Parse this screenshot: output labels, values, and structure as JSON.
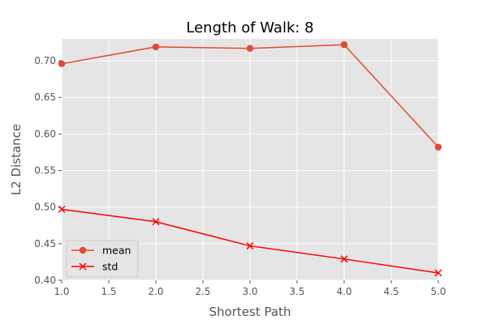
{
  "chart_data": {
    "type": "line",
    "title": "Length of Walk: 8",
    "xlabel": "Shortest Path",
    "ylabel": "L2 Distance",
    "xlim": [
      1.0,
      5.0
    ],
    "ylim": [
      0.4,
      0.73
    ],
    "xticks": [
      "1.0",
      "1.5",
      "2.0",
      "2.5",
      "3.0",
      "3.5",
      "4.0",
      "4.5",
      "5.0"
    ],
    "yticks": [
      "0.40",
      "0.45",
      "0.50",
      "0.55",
      "0.60",
      "0.65",
      "0.70"
    ],
    "grid": true,
    "legend_position": "lower-left",
    "x": [
      1.0,
      2.0,
      3.0,
      4.0,
      5.0
    ],
    "series": [
      {
        "name": "mean",
        "values": [
          0.696,
          0.719,
          0.717,
          0.722,
          0.582
        ],
        "color": "#E24A33",
        "marker": "circle"
      },
      {
        "name": "std",
        "values": [
          0.497,
          0.48,
          0.447,
          0.429,
          0.41
        ],
        "color": "#FF0000",
        "marker": "x"
      }
    ]
  }
}
